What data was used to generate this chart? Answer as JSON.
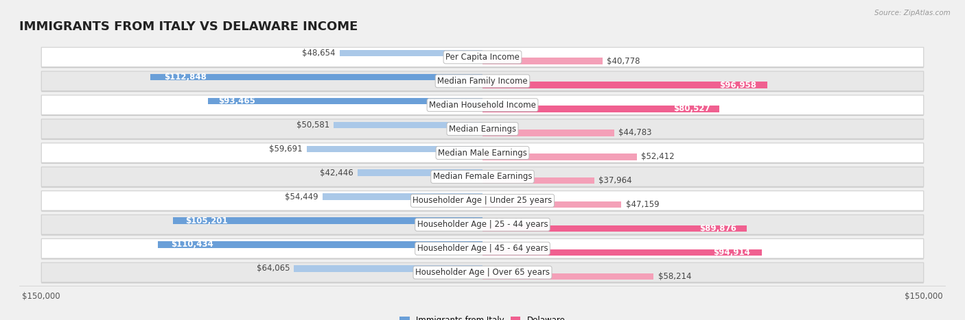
{
  "title": "IMMIGRANTS FROM ITALY VS DELAWARE INCOME",
  "source": "Source: ZipAtlas.com",
  "categories": [
    "Per Capita Income",
    "Median Family Income",
    "Median Household Income",
    "Median Earnings",
    "Median Male Earnings",
    "Median Female Earnings",
    "Householder Age | Under 25 years",
    "Householder Age | 25 - 44 years",
    "Householder Age | 45 - 64 years",
    "Householder Age | Over 65 years"
  ],
  "italy_values": [
    48654,
    112848,
    93465,
    50581,
    59691,
    42446,
    54449,
    105201,
    110434,
    64065
  ],
  "delaware_values": [
    40778,
    96958,
    80527,
    44783,
    52412,
    37964,
    47159,
    89876,
    94914,
    58214
  ],
  "italy_color_dark": "#6a9fd8",
  "italy_color_light": "#aac8e8",
  "delaware_color_dark": "#f06090",
  "delaware_color_light": "#f4a0b8",
  "italy_label": "Immigrants from Italy",
  "delaware_label": "Delaware",
  "max_value": 150000,
  "background_color": "#f0f0f0",
  "row_bg_light": "#ffffff",
  "row_bg_dark": "#e8e8e8",
  "label_font_size": 8.5,
  "value_font_size": 8.5,
  "title_font_size": 13,
  "italy_threshold": 80000,
  "delaware_threshold": 80000
}
